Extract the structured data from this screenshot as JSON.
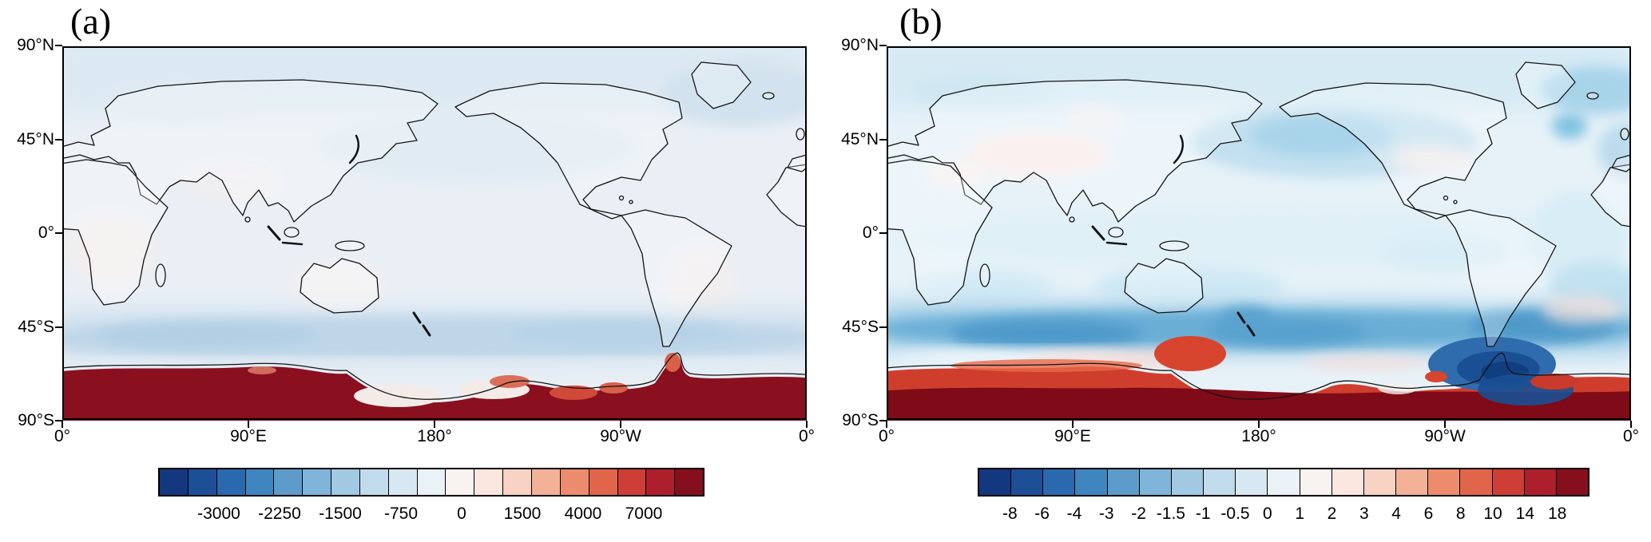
{
  "panels": [
    {
      "label": "(a)",
      "axes": {
        "lat": [
          "90°N",
          "45°N",
          "0°",
          "45°S",
          "90°S"
        ],
        "lon": [
          "0°",
          "90°E",
          "180°",
          "90°W",
          "0°"
        ]
      },
      "colorbar": {
        "labels": [
          "-3000",
          "-2250",
          "-1500",
          "-750",
          "0",
          "1500",
          "4000",
          "7000"
        ],
        "colors": [
          "#14387f",
          "#1d4f97",
          "#2a69ad",
          "#3f85bf",
          "#5d9cca",
          "#7fb5d8",
          "#a2c9e2",
          "#c1dbec",
          "#d8e8f2",
          "#eaf1f7",
          "#f8f3f1",
          "#fbe7df",
          "#f8d2c2",
          "#f3b198",
          "#ec8c6d",
          "#e1654a",
          "#cd3e34",
          "#ad1f2c",
          "#860f1d"
        ]
      }
    },
    {
      "label": "(b)",
      "axes": {
        "lat": [
          "90°N",
          "45°N",
          "0°",
          "45°S",
          "90°S"
        ],
        "lon": [
          "0°",
          "90°E",
          "180°",
          "90°W",
          "0°"
        ]
      },
      "colorbar": {
        "labels": [
          "-8",
          "-6",
          "-4",
          "-3",
          "-2",
          "-1.5",
          "-1",
          "-0.5",
          "0",
          "1",
          "2",
          "3",
          "4",
          "6",
          "8",
          "10",
          "14",
          "18"
        ],
        "colors": [
          "#14387f",
          "#1d4f97",
          "#2a69ad",
          "#3f85bf",
          "#5d9cca",
          "#7fb5d8",
          "#a2c9e2",
          "#c1dbec",
          "#d8e8f2",
          "#eaf1f7",
          "#f8f3f1",
          "#fbe7df",
          "#f8d2c2",
          "#f3b198",
          "#ec8c6d",
          "#e1654a",
          "#cd3e34",
          "#ad1f2c",
          "#860f1d"
        ]
      }
    }
  ],
  "chart_data": [
    {
      "type": "heatmap",
      "title": "(a)",
      "projection": "global lat-lon world map, Pacific-centered (longitudes 0° eastward to 360°)",
      "x_ticks": [
        "0°",
        "90°E",
        "180°",
        "90°W",
        "0°"
      ],
      "y_ticks": [
        "90°N",
        "45°N",
        "0°",
        "45°S",
        "90°S"
      ],
      "levels": [
        -3000,
        -2250,
        -1500,
        -750,
        0,
        1500,
        4000,
        7000
      ],
      "legend_position": "bottom-horizontal-colorbar",
      "grid": false,
      "pattern_summary": "Near-zero pale values over most of the globe; weak negative (light blue) over mid- and high-latitude oceans, especially a band in the Southern Ocean around 45-65S; very strong positive values (dark red, >7000) covering Antarctica with small red/white patches along the Antarctic coast"
    },
    {
      "type": "heatmap",
      "title": "(b)",
      "projection": "global lat-lon world map, Pacific-centered (longitudes 0° eastward to 360°)",
      "x_ticks": [
        "0°",
        "90°E",
        "180°",
        "90°W",
        "0°"
      ],
      "y_ticks": [
        "90°N",
        "45°N",
        "0°",
        "45°S",
        "90°S"
      ],
      "levels": [
        -8,
        -6,
        -4,
        -3,
        -2,
        -1.5,
        -1,
        -0.5,
        0,
        1,
        2,
        3,
        4,
        6,
        8,
        10,
        14,
        18
      ],
      "legend_position": "bottom-horizontal-colorbar",
      "grid": false,
      "pattern_summary": "Weak negative (light blue) anomalies over most oceans with patchy light pink over continents; pronounced negative (medium-dark blue) band across the Southern Ocean 45-65S; very strong negative (dark navy) pocket near the Antarctic Peninsula / Weddell Sea sector; strong positive (bright red to dark maroon, >18) over Antarctica"
    }
  ]
}
